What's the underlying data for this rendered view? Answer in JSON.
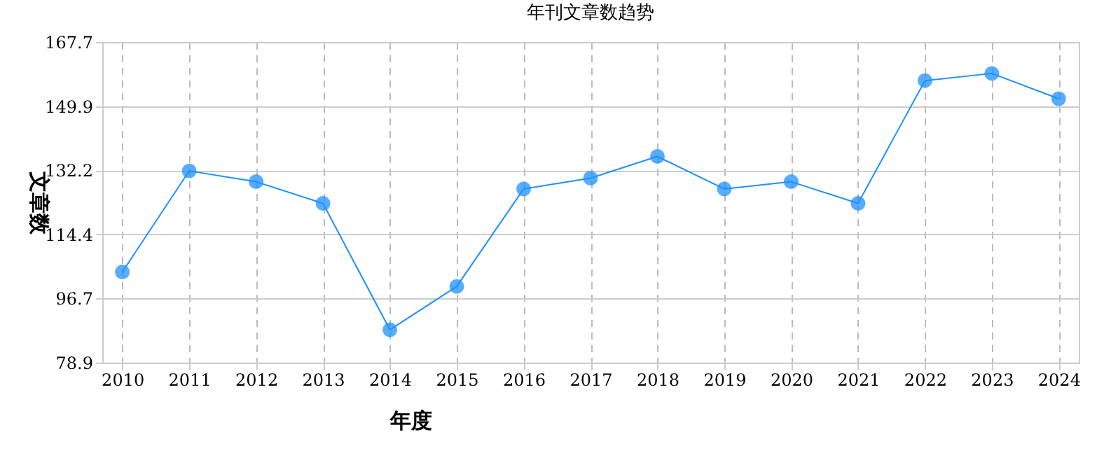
{
  "chart_data": {
    "type": "line",
    "title": "年刊文章数趋势",
    "xlabel": "年度",
    "ylabel": "文章数",
    "categories": [
      "2010",
      "2011",
      "2012",
      "2013",
      "2014",
      "2015",
      "2016",
      "2017",
      "2018",
      "2019",
      "2020",
      "2021",
      "2022",
      "2023",
      "2024"
    ],
    "series": [
      {
        "color": "#1e90ff",
        "values": [
          104,
          132,
          129,
          123,
          88,
          100,
          127,
          130,
          136,
          127,
          129,
          123,
          157,
          159,
          152
        ]
      }
    ],
    "ylim": [
      78.9,
      167.7
    ],
    "yticks": [
      78.9,
      96.7,
      114.4,
      132.2,
      149.9,
      167.7
    ],
    "grid": true,
    "marker": "circle",
    "line_style": "solid"
  }
}
